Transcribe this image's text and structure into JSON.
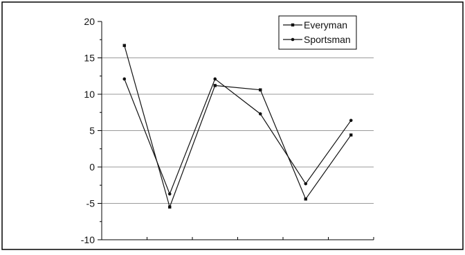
{
  "chart_data": {
    "type": "line",
    "title": "",
    "xlabel": "",
    "ylabel": "",
    "ylim": [
      -10,
      20
    ],
    "yticks": [
      -10,
      -5,
      0,
      5,
      10,
      15,
      20
    ],
    "grid": "horizontal",
    "legend_position": "top-right",
    "x": [
      1,
      2,
      3,
      4,
      5,
      6
    ],
    "series": [
      {
        "name": "Everyman",
        "marker": "square",
        "values": [
          16.7,
          -5.5,
          11.2,
          10.6,
          -4.4,
          4.4
        ]
      },
      {
        "name": "Sportsman",
        "marker": "circle",
        "values": [
          12.1,
          -3.7,
          12.1,
          7.3,
          -2.3,
          6.4
        ]
      }
    ],
    "colors": {
      "line": "#111111",
      "grid": "#9a9a9a",
      "frame": "#000000"
    }
  }
}
